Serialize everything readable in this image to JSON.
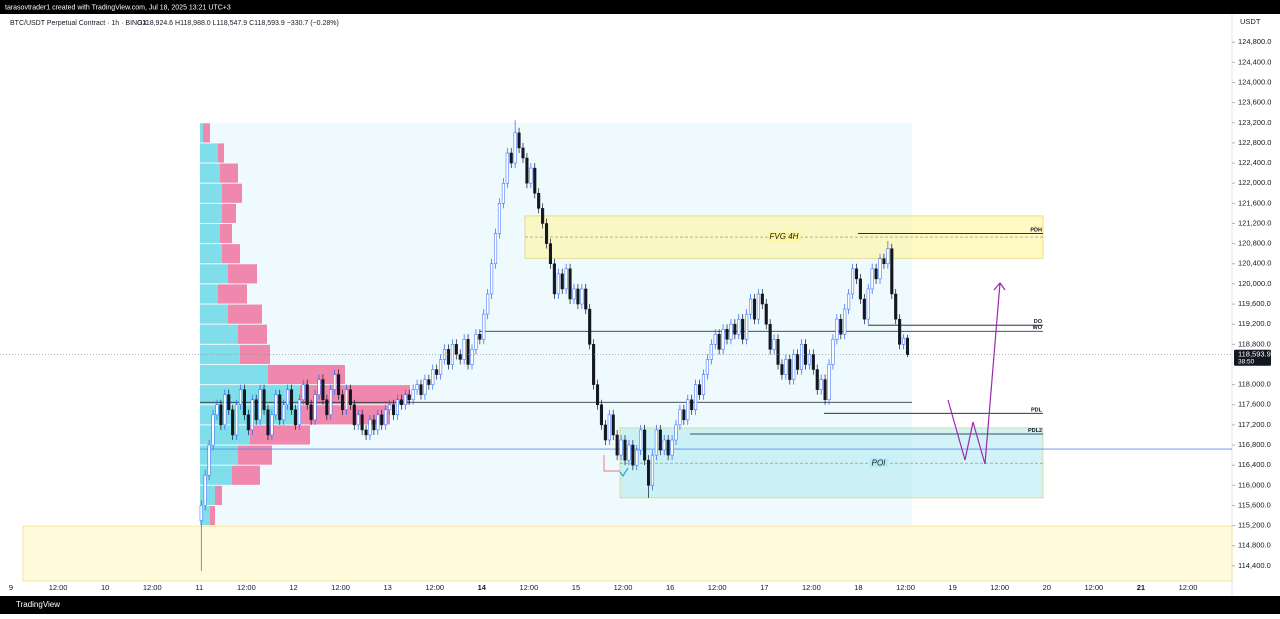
{
  "header": "tarasovtrader1 created with TradingView.com, Jul 18, 2025 13:21 UTC+3",
  "footer": "TradingView",
  "chart_data": {
    "type": "candlestick",
    "title": "BTC/USDT Perpetual Contract · 1h · BINGX",
    "ohlc_text": "O118,924.6  H118,988.0  L118,547.9  C118,593.9  −330.7 (−0.28%)",
    "y_label": "USDT",
    "xticks": [
      "9",
      "12:00",
      "10",
      "12:00",
      "11",
      "12:00",
      "12",
      "12:00",
      "13",
      "12:00",
      "14",
      "12:00",
      "15",
      "12:00",
      "16",
      "12:00",
      "17",
      "12:00",
      "18",
      "12:00",
      "19",
      "12:00",
      "20",
      "12:00",
      "21",
      "12:00"
    ],
    "ylim": [
      114100,
      125360
    ],
    "yticks": [
      {
        "value": 124800,
        "label": "124,800.0"
      },
      {
        "value": 124400,
        "label": "124,400.0"
      },
      {
        "value": 124000,
        "label": "124,000.0"
      },
      {
        "value": 123600,
        "label": "123,600.0"
      },
      {
        "value": 123200,
        "label": "123,200.0"
      },
      {
        "value": 122800,
        "label": "122,800.0"
      },
      {
        "value": 122400,
        "label": "122,400.0"
      },
      {
        "value": 122000,
        "label": "122,000.0"
      },
      {
        "value": 121600,
        "label": "121,600.0"
      },
      {
        "value": 121200,
        "label": "121,200.0"
      },
      {
        "value": 120800,
        "label": "120,800.0"
      },
      {
        "value": 120400,
        "label": "120,400.0"
      },
      {
        "value": 120000,
        "label": "120,000.0"
      },
      {
        "value": 119600,
        "label": "119,600.0"
      },
      {
        "value": 119200,
        "label": "119,200.0"
      },
      {
        "value": 118800,
        "label": "118,800.0"
      },
      {
        "value": 118000,
        "label": "118,000.0"
      },
      {
        "value": 117600,
        "label": "117,600.0"
      },
      {
        "value": 117200,
        "label": "117,200.0"
      },
      {
        "value": 116800,
        "label": "116,800.0"
      },
      {
        "value": 116400,
        "label": "116,400.0"
      },
      {
        "value": 116000,
        "label": "116,000.0"
      },
      {
        "value": 115600,
        "label": "115,600.0"
      },
      {
        "value": 115200,
        "label": "115,200.0"
      },
      {
        "value": 114800,
        "label": "114,800.0"
      },
      {
        "value": 114400,
        "label": "114,400.0"
      }
    ],
    "grid": false,
    "colors": {
      "up": "#2962ff",
      "down": "#131722"
    },
    "open": [
      115300,
      115600,
      116200,
      116800,
      117400,
      117600,
      117200,
      117800,
      117500,
      117000,
      117600,
      117900,
      117400,
      117100,
      117700,
      117300,
      117900,
      117500,
      117000,
      117400,
      117800,
      117300,
      117600,
      117900,
      117500,
      117200,
      117700,
      118000,
      117600,
      117300,
      117800,
      118100,
      117700,
      117400,
      117900,
      118200,
      117800,
      117500,
      117900,
      117600,
      117200,
      117400,
      117100,
      117000,
      117300,
      117100,
      117400,
      117200,
      117500,
      117600,
      117400,
      117700,
      117600,
      117800,
      117700,
      117900,
      118000,
      117800,
      118100,
      118000,
      118300,
      118200,
      118500,
      118700,
      118400,
      118800,
      118600,
      118500,
      118900,
      118400,
      118700,
      119000,
      118900,
      119400,
      119800,
      120400,
      121000,
      121600,
      122000,
      122600,
      122400,
      123000,
      122700,
      122500,
      122000,
      122300,
      121800,
      121500,
      121200,
      120800,
      120400,
      119800,
      120200,
      119900,
      120300,
      119700,
      119900,
      119600,
      119900,
      119500,
      118800,
      118000,
      117600,
      117200,
      116900,
      117400,
      117000,
      116600,
      116900,
      116500,
      116800,
      116400,
      116700,
      117100,
      116500,
      116000,
      116600,
      117100,
      116700,
      116900,
      116600,
      116900,
      117200,
      117500,
      117300,
      117700,
      117500,
      118000,
      117800,
      118200,
      118500,
      118800,
      119000,
      118700,
      119100,
      118900,
      119200,
      119000,
      119300,
      118900,
      119400,
      119700,
      119300,
      119800,
      119600,
      119200,
      118700,
      118900,
      118400,
      118200,
      118500,
      118100,
      118600,
      118300,
      118800,
      118400,
      118600,
      118300,
      117900,
      118100,
      117700,
      118400,
      118900,
      119300,
      119000,
      119500,
      119800,
      120300,
      120100,
      119700,
      119300,
      119900,
      120300,
      120100,
      120500,
      120400,
      120700,
      119800,
      119300,
      118800,
      118924.6
    ],
    "high": [
      115700,
      116300,
      116900,
      117500,
      117700,
      117700,
      117900,
      117900,
      117600,
      117700,
      118000,
      118000,
      117500,
      117800,
      117800,
      118000,
      118000,
      117600,
      117500,
      117900,
      117900,
      117700,
      118000,
      118000,
      117600,
      117800,
      118100,
      118100,
      117700,
      117900,
      118200,
      118200,
      117800,
      118000,
      118300,
      118300,
      117900,
      118000,
      118000,
      117700,
      117500,
      117500,
      117200,
      117400,
      117400,
      117500,
      117500,
      117600,
      117700,
      117700,
      117800,
      117800,
      117900,
      117900,
      118000,
      118100,
      118100,
      118200,
      118200,
      118400,
      118400,
      118600,
      118800,
      118800,
      118900,
      118900,
      118700,
      119000,
      119000,
      118800,
      119100,
      119100,
      119500,
      119900,
      120500,
      121100,
      121700,
      122100,
      122700,
      122700,
      123250,
      123100,
      122800,
      122600,
      122400,
      122400,
      121900,
      121600,
      121300,
      120900,
      120500,
      120300,
      120300,
      120400,
      120400,
      120000,
      120000,
      120000,
      120000,
      119600,
      118900,
      118100,
      117700,
      117300,
      117500,
      117500,
      117100,
      117000,
      117000,
      116900,
      116900,
      116800,
      117200,
      117200,
      116600,
      116700,
      117200,
      117200,
      117000,
      117000,
      117000,
      117300,
      117600,
      117600,
      117800,
      117800,
      118100,
      118100,
      118300,
      118600,
      118900,
      119100,
      119100,
      119200,
      119200,
      119300,
      119300,
      119400,
      119400,
      119500,
      119800,
      119800,
      119900,
      119900,
      119700,
      119300,
      119000,
      119000,
      118500,
      118600,
      118600,
      118700,
      118700,
      118900,
      118900,
      118700,
      118700,
      118400,
      118200,
      118200,
      118500,
      119000,
      119400,
      119400,
      119600,
      119900,
      120400,
      120400,
      120200,
      119800,
      120000,
      120400,
      120400,
      120600,
      120600,
      120850,
      120800,
      119900,
      119400,
      119000,
      118988
    ],
    "low": [
      114300,
      115500,
      116100,
      116700,
      117300,
      117100,
      117100,
      117400,
      116900,
      116900,
      117500,
      117300,
      117000,
      117000,
      117200,
      117200,
      117400,
      116900,
      116900,
      117300,
      117200,
      117200,
      117500,
      117400,
      117100,
      117100,
      117600,
      117500,
      117200,
      117200,
      117700,
      117600,
      117300,
      117300,
      117800,
      117700,
      117400,
      117400,
      117500,
      117100,
      117100,
      117000,
      116900,
      116900,
      117000,
      117000,
      117100,
      117100,
      117400,
      117300,
      117300,
      117500,
      117500,
      117600,
      117600,
      117800,
      117700,
      117700,
      117900,
      117900,
      118100,
      118100,
      118400,
      118300,
      118300,
      118500,
      118400,
      118400,
      118300,
      118300,
      118600,
      118800,
      118800,
      119300,
      119700,
      120300,
      120900,
      121500,
      121900,
      122300,
      122300,
      122600,
      122400,
      121900,
      121900,
      121700,
      121400,
      121100,
      120700,
      120300,
      119700,
      119700,
      119800,
      119800,
      119600,
      119600,
      119500,
      119500,
      119400,
      118700,
      117900,
      117500,
      117100,
      116800,
      116800,
      116900,
      116500,
      116500,
      116400,
      116400,
      116300,
      116300,
      116600,
      116400,
      115750,
      115900,
      116500,
      116600,
      116600,
      116500,
      116500,
      116800,
      117100,
      117200,
      117200,
      117400,
      117400,
      117700,
      117700,
      118100,
      118400,
      118700,
      118600,
      118600,
      118800,
      118800,
      118900,
      118900,
      118800,
      118800,
      119300,
      119200,
      119200,
      119500,
      119100,
      118600,
      118600,
      118300,
      118100,
      118100,
      118000,
      118000,
      118200,
      118200,
      118300,
      118300,
      118200,
      117800,
      117800,
      117600,
      117600,
      118300,
      118800,
      118900,
      118900,
      119400,
      119700,
      120000,
      119600,
      119200,
      119200,
      119800,
      120000,
      120000,
      120300,
      120300,
      119700,
      119200,
      118700,
      118700,
      118547.9
    ],
    "close": [
      115600,
      116200,
      116800,
      117400,
      117600,
      117200,
      117800,
      117500,
      117000,
      117600,
      117900,
      117400,
      117100,
      117700,
      117300,
      117900,
      117500,
      117000,
      117400,
      117800,
      117300,
      117600,
      117900,
      117500,
      117200,
      117700,
      118000,
      117600,
      117300,
      117800,
      118100,
      117700,
      117400,
      117900,
      118200,
      117800,
      117500,
      117900,
      117600,
      117200,
      117400,
      117100,
      117000,
      117300,
      117100,
      117400,
      117200,
      117500,
      117600,
      117400,
      117700,
      117600,
      117800,
      117700,
      117900,
      118000,
      117800,
      118100,
      118000,
      118300,
      118200,
      118500,
      118700,
      118400,
      118800,
      118600,
      118500,
      118900,
      118400,
      118700,
      119000,
      118900,
      119400,
      119800,
      120400,
      121000,
      121600,
      122000,
      122600,
      122400,
      123000,
      122700,
      122500,
      122000,
      122300,
      121800,
      121500,
      121200,
      120800,
      120400,
      119800,
      120200,
      119900,
      120300,
      119700,
      119900,
      119600,
      119900,
      119500,
      118800,
      118000,
      117600,
      117200,
      116900,
      117400,
      117000,
      116600,
      116900,
      116500,
      116800,
      116400,
      116700,
      117100,
      116500,
      116000,
      116600,
      117100,
      116700,
      116900,
      116600,
      116900,
      117200,
      117500,
      117300,
      117700,
      117500,
      118000,
      117800,
      118200,
      118500,
      118800,
      119000,
      118700,
      119100,
      118900,
      119200,
      119000,
      119300,
      118900,
      119400,
      119700,
      119300,
      119800,
      119600,
      119200,
      118700,
      118900,
      118400,
      118200,
      118500,
      118100,
      118600,
      118300,
      118800,
      118400,
      118600,
      118300,
      117900,
      118100,
      117700,
      118400,
      118900,
      119300,
      119000,
      119500,
      119800,
      120300,
      120100,
      119700,
      119300,
      119900,
      120300,
      120100,
      120500,
      120400,
      120700,
      119800,
      119300,
      118800,
      118924.6,
      118593.9
    ],
    "last_price_label": "118,593.9",
    "countdown": "38:50",
    "volume_profile": {
      "bins": [
        123200,
        122800,
        122400,
        122000,
        121600,
        121200,
        120800,
        120400,
        120000,
        119600,
        119200,
        118800,
        118400,
        118000,
        117600,
        117200,
        116800,
        116400,
        116000,
        115600,
        115200
      ],
      "up": [
        3,
        18,
        20,
        22,
        22,
        20,
        22,
        28,
        18,
        28,
        38,
        40,
        68,
        100,
        100,
        50,
        38,
        32,
        15,
        10
      ],
      "down": [
        7,
        6,
        18,
        20,
        14,
        12,
        18,
        29,
        29,
        34,
        29,
        30,
        77,
        110,
        90,
        60,
        34,
        28,
        7,
        5
      ],
      "up_color": "#80deea",
      "down_color": "#f06292"
    },
    "zones": [
      {
        "top": 123200,
        "bottom": 115200,
        "color": "#e1f5fe"
      },
      {
        "top": 115190,
        "color": "#fff9c4"
      },
      {
        "label": "FVG 4H",
        "top": 121350,
        "bottom": 120510,
        "mid": 120930,
        "color": "#fff59d"
      },
      {
        "label": "POI",
        "top": 117140,
        "bottom": 115750,
        "mid": 116440,
        "color": "#b2ebf2"
      }
    ],
    "levels": [
      {
        "label": "PDH",
        "value": 121000,
        "color": "#131722"
      },
      {
        "label": "DO",
        "value": 119180,
        "color": "#131722"
      },
      {
        "label": "WO",
        "value": 119060,
        "color": "#131722"
      },
      {
        "label": "PDL",
        "value": 117430,
        "color": "#131722"
      },
      {
        "label": "PDL2",
        "value": 117020,
        "color": "#131722"
      },
      {
        "value": 117650,
        "color": "#131722"
      },
      {
        "value": 116720,
        "color": "#5b8def"
      }
    ]
  }
}
